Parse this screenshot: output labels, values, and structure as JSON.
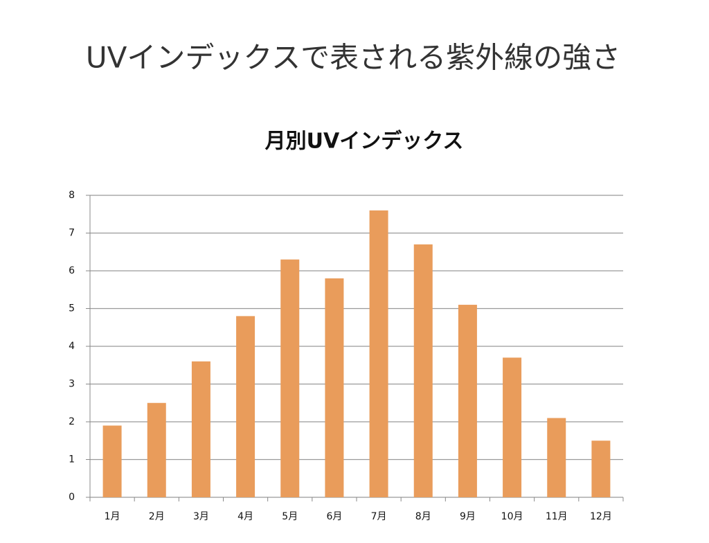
{
  "heading": "UVインデックスで表される紫外線の強さ",
  "chart_data": {
    "type": "bar",
    "title": "月別UVインデックス",
    "categories": [
      "1月",
      "2月",
      "3月",
      "4月",
      "5月",
      "6月",
      "7月",
      "8月",
      "9月",
      "10月",
      "11月",
      "12月"
    ],
    "values": [
      1.9,
      2.5,
      3.6,
      4.8,
      6.3,
      5.8,
      7.6,
      6.7,
      5.1,
      3.7,
      2.1,
      1.5
    ],
    "color": "#e99c5b",
    "ylim": [
      0,
      8
    ],
    "yticks": [
      0,
      1,
      2,
      3,
      4,
      5,
      6,
      7,
      8
    ],
    "grid": true
  }
}
